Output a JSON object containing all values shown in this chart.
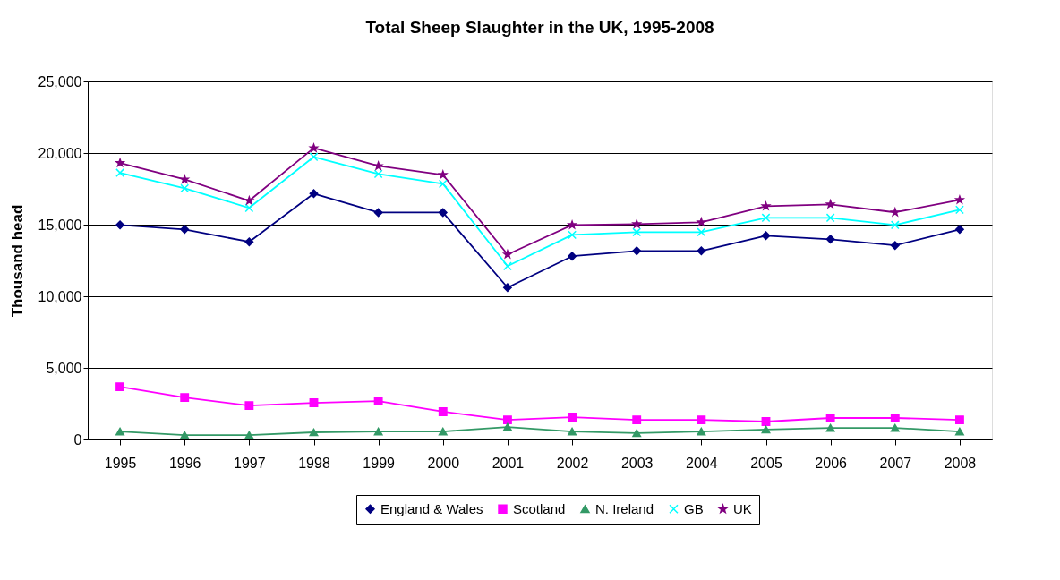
{
  "chart_data": {
    "type": "line",
    "title": "Total Sheep Slaughter in the UK, 1995-2008",
    "ylabel": "Thousand head",
    "categories": [
      "1995",
      "1996",
      "1997",
      "1998",
      "1999",
      "2000",
      "2001",
      "2002",
      "2003",
      "2004",
      "2005",
      "2006",
      "2007",
      "2008"
    ],
    "series": [
      {
        "name": "England & Wales",
        "color": "#000080",
        "marker": "diamond",
        "values": [
          14980,
          14670,
          13800,
          17170,
          15850,
          15850,
          10610,
          12800,
          13170,
          13170,
          14230,
          13980,
          13550,
          14670
        ]
      },
      {
        "name": "Scotland",
        "color": "#ff00ff",
        "marker": "square",
        "values": [
          3680,
          2930,
          2370,
          2560,
          2680,
          1940,
          1370,
          1560,
          1370,
          1370,
          1250,
          1500,
          1500,
          1370
        ]
      },
      {
        "name": "N. Ireland",
        "color": "#339966",
        "marker": "triangle",
        "values": [
          560,
          310,
          310,
          500,
          560,
          560,
          870,
          560,
          440,
          560,
          690,
          810,
          810,
          560
        ]
      },
      {
        "name": "GB",
        "color": "#00ffff",
        "marker": "cross",
        "values": [
          18620,
          17540,
          16170,
          19730,
          18540,
          17850,
          12110,
          14290,
          14480,
          14480,
          15480,
          15480,
          14980,
          16040
        ]
      },
      {
        "name": "UK",
        "color": "#800080",
        "marker": "star",
        "values": [
          19310,
          18160,
          16670,
          20350,
          19100,
          18480,
          12920,
          14980,
          15040,
          15170,
          16290,
          16420,
          15860,
          16730
        ]
      }
    ],
    "ylim": [
      0,
      25000
    ],
    "yticks": [
      0,
      {
        "value": 5000,
        "label": "5,000"
      },
      {
        "value": 10000,
        "label": "10,000"
      },
      {
        "value": 15000,
        "label": "15,000"
      },
      {
        "value": 20000,
        "label": "20,000"
      },
      {
        "value": 25000,
        "label": "25,000"
      }
    ],
    "grid": "y",
    "legend": "bottom",
    "line_style": "solid"
  }
}
